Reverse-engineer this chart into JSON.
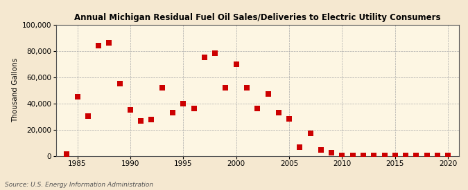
{
  "title": "Annual Michigan Residual Fuel Oil Sales/Deliveries to Electric Utility Consumers",
  "ylabel": "Thousand Gallons",
  "source": "Source: U.S. Energy Information Administration",
  "background_color": "#f5e8d0",
  "plot_background_color": "#fdf6e3",
  "marker_color": "#cc0000",
  "marker_size": 28,
  "xlim": [
    1983,
    2021
  ],
  "ylim": [
    0,
    100000
  ],
  "xticks": [
    1985,
    1990,
    1995,
    2000,
    2005,
    2010,
    2015,
    2020
  ],
  "yticks": [
    0,
    20000,
    40000,
    60000,
    80000,
    100000
  ],
  "data_years": [
    1984,
    1985,
    1986,
    1987,
    1988,
    1989,
    1990,
    1991,
    1992,
    1993,
    1994,
    1995,
    1996,
    1997,
    1998,
    1999,
    2000,
    2001,
    2002,
    2003,
    2004,
    2005,
    2006,
    2007,
    2008,
    2009,
    2010,
    2011,
    2012,
    2013,
    2014,
    2015,
    2016,
    2017,
    2018,
    2019,
    2020
  ],
  "data_values": [
    1200,
    45000,
    30500,
    84000,
    86000,
    55000,
    35000,
    26500,
    27500,
    52000,
    33000,
    40000,
    36000,
    75000,
    78000,
    52000,
    70000,
    52000,
    36000,
    47000,
    33000,
    28000,
    6500,
    17000,
    4500,
    2500,
    300,
    300,
    300,
    300,
    300,
    300,
    300,
    300,
    300,
    300,
    300
  ]
}
